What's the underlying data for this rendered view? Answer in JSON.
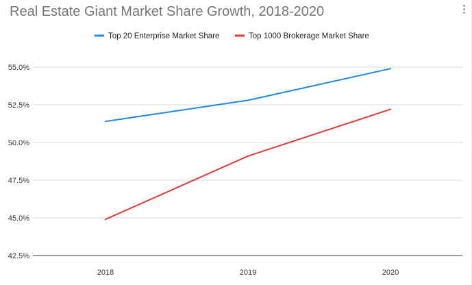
{
  "chart_data": {
    "type": "line",
    "title": "Real Estate Giant Market Share Growth, 2018-2020",
    "xlabel": "",
    "ylabel": "",
    "categories": [
      "2018",
      "2019",
      "2020"
    ],
    "series": [
      {
        "name": "Top 20 Enterprise Market Share",
        "color": "#1e88e5",
        "values": [
          51.4,
          52.8,
          54.9
        ]
      },
      {
        "name": "Top 1000 Brokerage Market Share",
        "color": "#e53935",
        "values": [
          44.9,
          49.1,
          52.2
        ]
      }
    ],
    "ylim": [
      42.5,
      55.0
    ],
    "yticks": [
      42.5,
      45.0,
      47.5,
      50.0,
      52.5,
      55.0
    ],
    "ytick_labels": [
      "42.5%",
      "45.0%",
      "47.5%",
      "50.0%",
      "52.5%",
      "55.0%"
    ],
    "grid": true,
    "legend_position": "top"
  },
  "colors": {
    "title": "#757575",
    "gridline": "#d9d9d9",
    "baseline": "#333333"
  }
}
